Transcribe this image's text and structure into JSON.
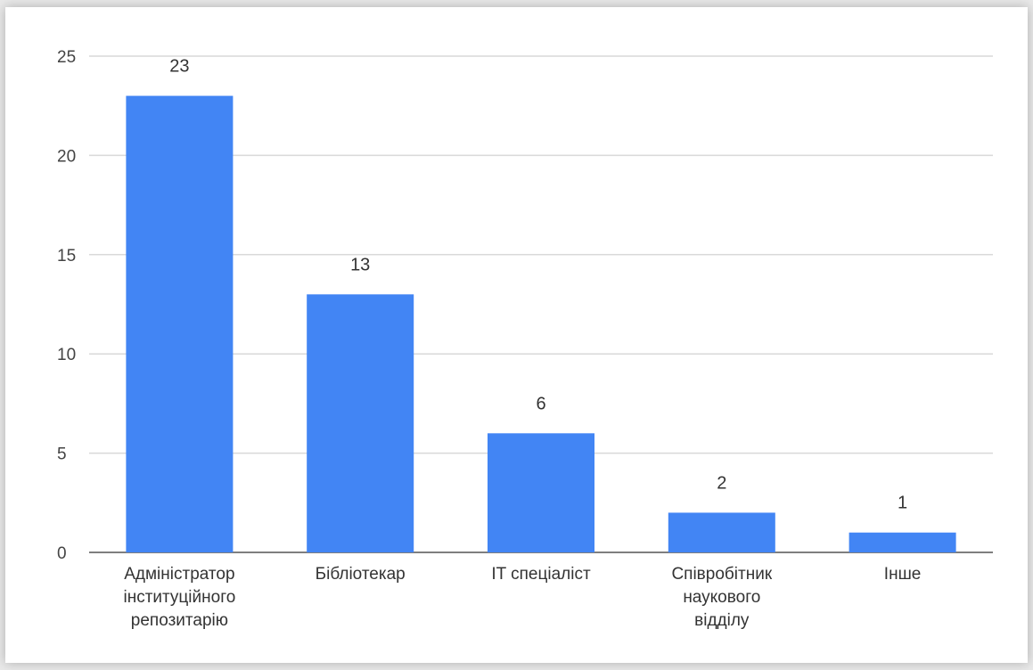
{
  "chart_data": {
    "type": "bar",
    "categories": [
      [
        "Адміністратор",
        "інституційного",
        "репозитарію"
      ],
      [
        "Бібліотекар"
      ],
      [
        "IT спеціаліст"
      ],
      [
        "Співробітник",
        "наукового",
        "відділу"
      ],
      [
        "Інше"
      ]
    ],
    "values": [
      23,
      13,
      6,
      2,
      1
    ],
    "data_labels": [
      "23",
      "13",
      "6",
      "2",
      "1"
    ],
    "yticks": [
      "0",
      "5",
      "10",
      "15",
      "20",
      "25"
    ],
    "ylim": [
      0,
      25
    ],
    "title": "",
    "xlabel": "",
    "ylabel": "",
    "grid": true,
    "legend": "none",
    "colors": {
      "bar": "#4285f4",
      "grid": "#d9d9d9",
      "axis": "#555555"
    }
  }
}
